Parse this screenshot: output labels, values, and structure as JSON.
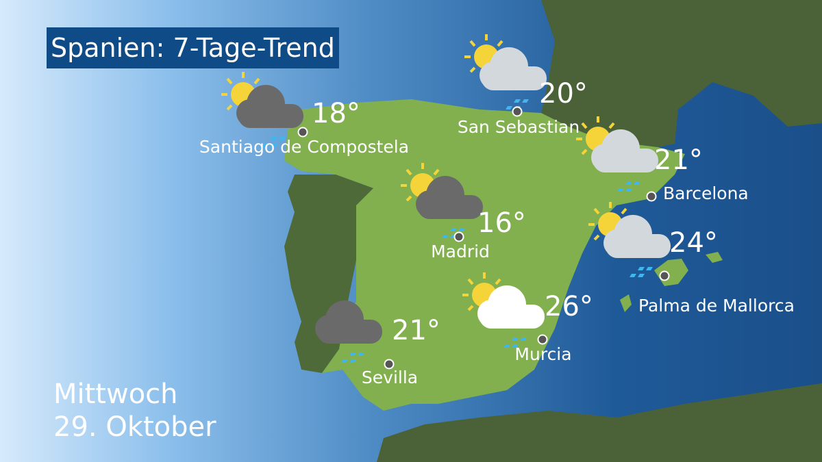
{
  "title": "Spanien: 7-Tage-Trend",
  "date": {
    "weekday": "Mittwoch",
    "day": "29. Oktober"
  },
  "colors": {
    "title_bg": "#0f4b86",
    "spain": "#82b04e",
    "portugal": "#4e6a38",
    "france": "#4b6239",
    "sun": "#f5d43a",
    "rain": "#3fb6ee",
    "cloud_dark": "#6a6a6a",
    "cloud_light": "#d3d8dc",
    "cloud_white": "#ffffff"
  },
  "cities": [
    {
      "name": "Santiago de Compostela",
      "temp": "18°",
      "icon": "sun-dark-cloud-rain-icon"
    },
    {
      "name": "San Sebastian",
      "temp": "20°",
      "icon": "sun-light-cloud-rain-icon"
    },
    {
      "name": "Barcelona",
      "temp": "21°",
      "icon": "sun-light-cloud-rain-icon"
    },
    {
      "name": "Madrid",
      "temp": "16°",
      "icon": "sun-dark-cloud-rain-icon"
    },
    {
      "name": "Palma de Mallorca",
      "temp": "24°",
      "icon": "sun-light-cloud-rain-icon"
    },
    {
      "name": "Murcia",
      "temp": "26°",
      "icon": "sun-white-cloud-rain-icon"
    },
    {
      "name": "Sevilla",
      "temp": "21°",
      "icon": "dark-cloud-rain-icon"
    }
  ]
}
